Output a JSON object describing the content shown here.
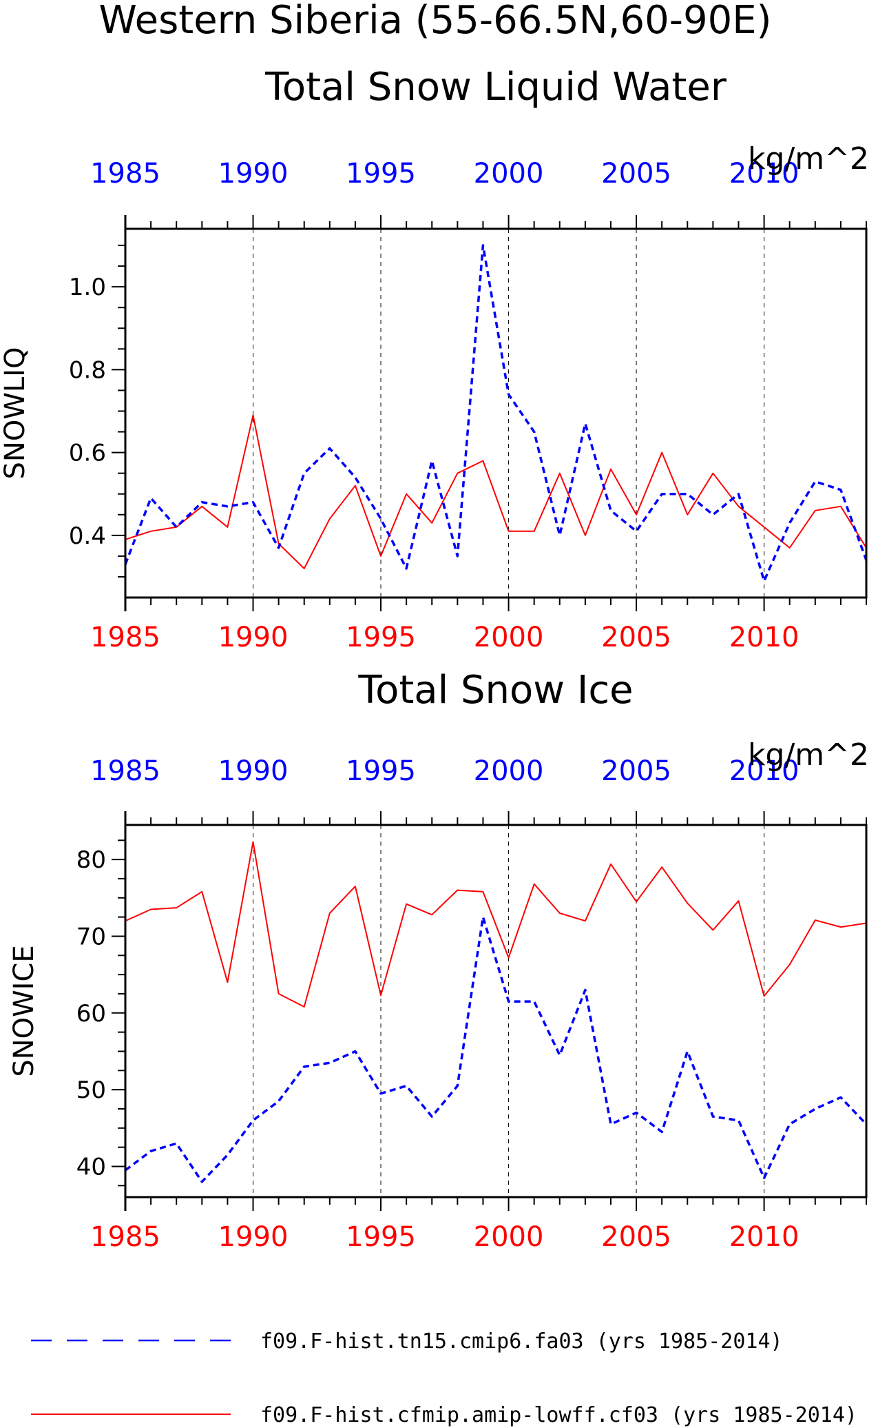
{
  "figure": {
    "title_line1": "Western Siberia (55-66.5N,60-90E)",
    "colors": {
      "model_a": "#0000ff",
      "model_b": "#ff0000",
      "axis": "#000000"
    }
  },
  "legend": [
    {
      "label": "f09.F-hist.tn15.cmip6.fa03 (yrs 1985-2014)",
      "style": "dashed",
      "color": "#0000ff"
    },
    {
      "label": "f09.F-hist.cfmip.amip-lowff.cf03 (yrs 1985-2014)",
      "style": "solid",
      "color": "#ff0000"
    }
  ],
  "chart_data": [
    {
      "type": "line",
      "title": "Total Snow Liquid Water",
      "units": "kg/m^2",
      "ylabel": "SNOWLIQ",
      "xlim": [
        1985,
        2014
      ],
      "ylim": [
        0.25,
        1.14
      ],
      "yticks": [
        0.4,
        0.6,
        0.8,
        1.0
      ],
      "ytick_labels": [
        "0.4",
        "0.6",
        "0.8",
        "1.0"
      ],
      "xticks": [
        1985,
        1990,
        1995,
        2000,
        2005,
        2010
      ],
      "xtick_labels": [
        "1985",
        "1990",
        "1995",
        "2000",
        "2005",
        "2010"
      ],
      "grid": "vertical dashed at labeled years",
      "x": [
        1985,
        1986,
        1987,
        1988,
        1989,
        1990,
        1991,
        1992,
        1993,
        1994,
        1995,
        1996,
        1997,
        1998,
        1999,
        2000,
        2001,
        2002,
        2003,
        2004,
        2005,
        2006,
        2007,
        2008,
        2009,
        2010,
        2011,
        2012,
        2013,
        2014
      ],
      "series": [
        {
          "name": "f09.F-hist.tn15.cmip6.fa03 (yrs 1985-2014)",
          "color": "#0000ff",
          "style": "dashed",
          "values": [
            0.33,
            0.49,
            0.42,
            0.48,
            0.47,
            0.48,
            0.37,
            0.55,
            0.61,
            0.54,
            0.44,
            0.32,
            0.58,
            0.35,
            1.1,
            0.74,
            0.65,
            0.4,
            0.67,
            0.46,
            0.41,
            0.5,
            0.5,
            0.45,
            0.5,
            0.29,
            0.43,
            0.53,
            0.51,
            0.34
          ]
        },
        {
          "name": "f09.F-hist.cfmip.amip-lowff.cf03 (yrs 1985-2014)",
          "color": "#ff0000",
          "style": "solid",
          "values": [
            0.39,
            0.41,
            0.42,
            0.47,
            0.42,
            0.69,
            0.38,
            0.32,
            0.44,
            0.52,
            0.35,
            0.5,
            0.43,
            0.55,
            0.58,
            0.41,
            0.41,
            0.55,
            0.4,
            0.56,
            0.45,
            0.6,
            0.45,
            0.55,
            0.47,
            0.42,
            0.37,
            0.46,
            0.47,
            0.37
          ]
        }
      ]
    },
    {
      "type": "line",
      "title": "Total Snow Ice",
      "units": "kg/m^2",
      "ylabel": "SNOWICE",
      "xlim": [
        1985,
        2014
      ],
      "ylim": [
        36,
        84.5
      ],
      "yticks": [
        40,
        50,
        60,
        70,
        80
      ],
      "ytick_labels": [
        "40",
        "50",
        "60",
        "70",
        "80"
      ],
      "xticks": [
        1985,
        1990,
        1995,
        2000,
        2005,
        2010
      ],
      "xtick_labels": [
        "1985",
        "1990",
        "1995",
        "2000",
        "2005",
        "2010"
      ],
      "grid": "vertical dashed at labeled years",
      "x": [
        1985,
        1986,
        1987,
        1988,
        1989,
        1990,
        1991,
        1992,
        1993,
        1994,
        1995,
        1996,
        1997,
        1998,
        1999,
        2000,
        2001,
        2002,
        2003,
        2004,
        2005,
        2006,
        2007,
        2008,
        2009,
        2010,
        2011,
        2012,
        2013,
        2014
      ],
      "series": [
        {
          "name": "f09.F-hist.tn15.cmip6.fa03 (yrs 1985-2014)",
          "color": "#0000ff",
          "style": "dashed",
          "values": [
            39.5,
            42,
            43,
            38,
            41.5,
            46,
            48.5,
            53,
            53.5,
            55,
            49.5,
            50.5,
            46.5,
            50.5,
            72.5,
            61.5,
            61.5,
            54.5,
            63,
            45.5,
            47,
            44.5,
            55,
            46.5,
            46,
            38.5,
            45.5,
            47.5,
            49,
            45.5
          ]
        },
        {
          "name": "f09.F-hist.cfmip.amip-lowff.cf03 (yrs 1985-2014)",
          "color": "#ff0000",
          "style": "solid",
          "values": [
            72,
            73.5,
            73.7,
            75.8,
            64,
            82.3,
            62.5,
            60.8,
            73,
            76.5,
            62.3,
            74.2,
            72.8,
            76,
            75.8,
            67.2,
            76.8,
            73,
            72,
            79.4,
            74.5,
            79,
            74.3,
            70.8,
            74.6,
            62.2,
            66.3,
            72.1,
            71.2,
            71.7
          ]
        }
      ]
    }
  ]
}
